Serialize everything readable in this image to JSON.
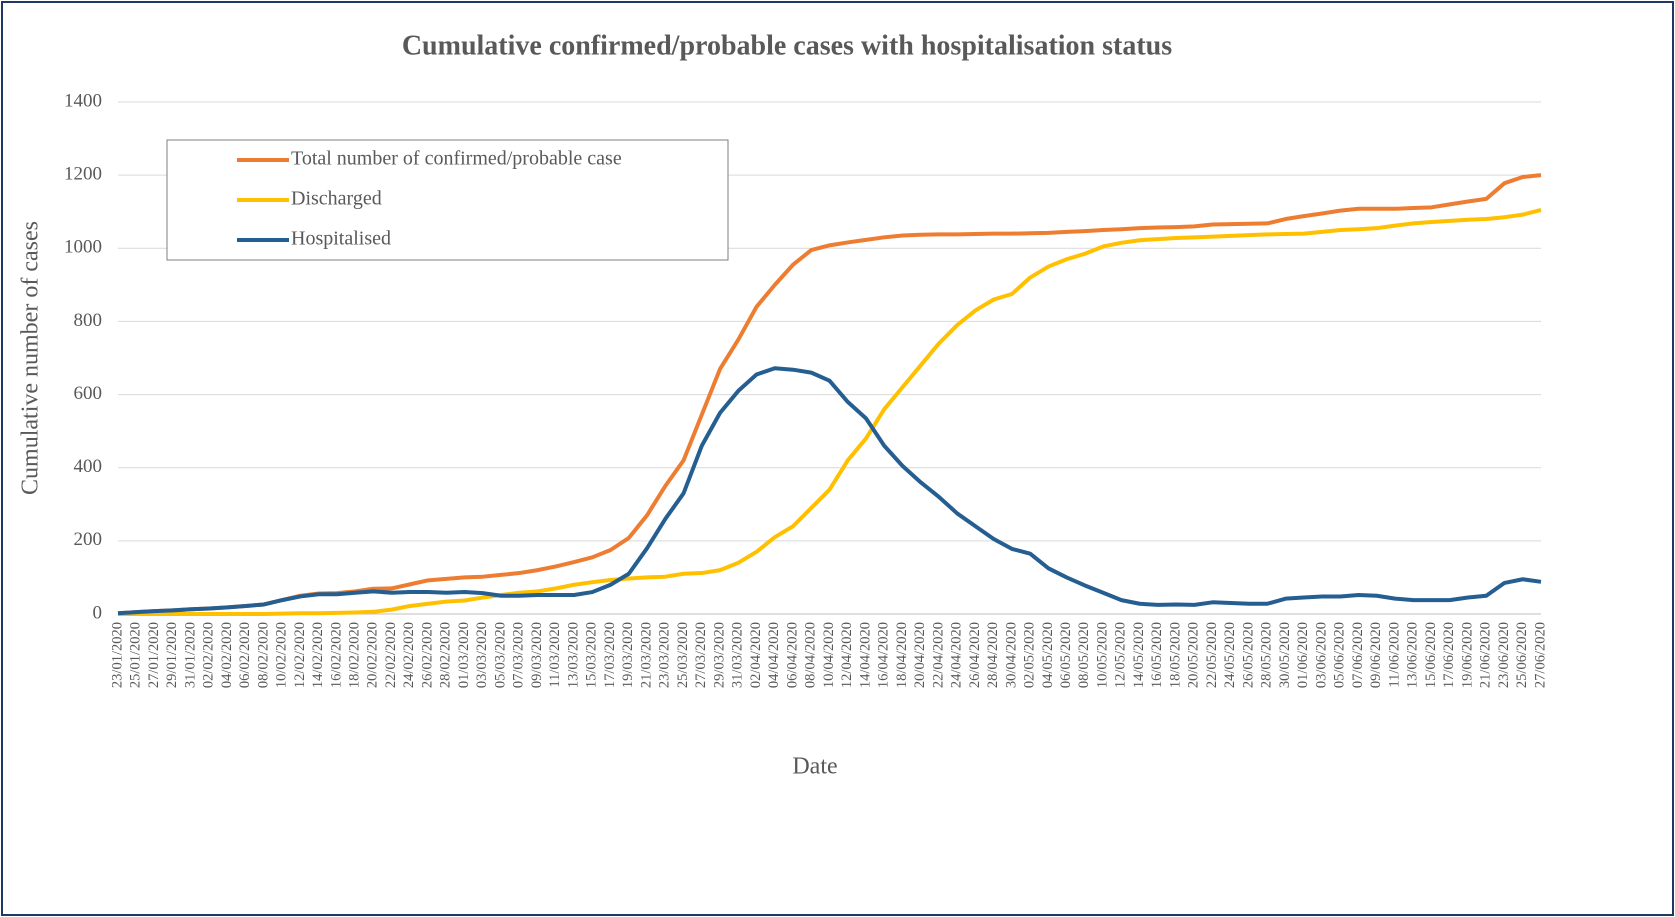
{
  "chart_data": {
    "type": "line",
    "title": "Cumulative confirmed/probable cases with hospitalisation status",
    "x_label": "Date",
    "y_label": "Cumulative number of cases",
    "categories": [
      "23/01/2020",
      "25/01/2020",
      "27/01/2020",
      "29/01/2020",
      "31/01/2020",
      "02/02/2020",
      "04/02/2020",
      "06/02/2020",
      "08/02/2020",
      "10/02/2020",
      "12/02/2020",
      "14/02/2020",
      "16/02/2020",
      "18/02/2020",
      "20/02/2020",
      "22/02/2020",
      "24/02/2020",
      "26/02/2020",
      "28/02/2020",
      "01/03/2020",
      "03/03/2020",
      "05/03/2020",
      "07/03/2020",
      "09/03/2020",
      "11/03/2020",
      "13/03/2020",
      "15/03/2020",
      "17/03/2020",
      "19/03/2020",
      "21/03/2020",
      "23/03/2020",
      "25/03/2020",
      "27/03/2020",
      "29/03/2020",
      "31/03/2020",
      "02/04/2020",
      "04/04/2020",
      "06/04/2020",
      "08/04/2020",
      "10/04/2020",
      "12/04/2020",
      "14/04/2020",
      "16/04/2020",
      "18/04/2020",
      "20/04/2020",
      "22/04/2020",
      "24/04/2020",
      "26/04/2020",
      "28/04/2020",
      "30/04/2020",
      "02/05/2020",
      "04/05/2020",
      "06/05/2020",
      "08/05/2020",
      "10/05/2020",
      "12/05/2020",
      "14/05/2020",
      "16/05/2020",
      "18/05/2020",
      "20/05/2020",
      "22/05/2020",
      "24/05/2020",
      "26/05/2020",
      "28/05/2020",
      "30/05/2020",
      "01/06/2020",
      "03/06/2020",
      "05/06/2020",
      "07/06/2020",
      "09/06/2020",
      "11/06/2020",
      "13/06/2020",
      "15/06/2020",
      "17/06/2020",
      "19/06/2020",
      "21/06/2020",
      "23/06/2020",
      "25/06/2020",
      "27/06/2020"
    ],
    "series": [
      {
        "name": "Total number of confirmed/probable case",
        "color": "#ed7d31",
        "values": [
          2,
          5,
          8,
          10,
          13,
          15,
          18,
          22,
          26,
          38,
          50,
          56,
          57,
          62,
          69,
          70,
          81,
          92,
          96,
          100,
          102,
          107,
          112,
          120,
          130,
          142,
          155,
          175,
          208,
          270,
          350,
          420,
          545,
          670,
          750,
          840,
          900,
          955,
          995,
          1008,
          1016,
          1023,
          1030,
          1035,
          1037,
          1038,
          1038,
          1039,
          1040,
          1040,
          1041,
          1042,
          1045,
          1047,
          1050,
          1052,
          1055,
          1057,
          1058,
          1060,
          1065,
          1066,
          1067,
          1068,
          1080,
          1088,
          1095,
          1103,
          1108,
          1108,
          1108,
          1110,
          1112,
          1120,
          1128,
          1135,
          1178,
          1195,
          1200
        ]
      },
      {
        "name": "Discharged",
        "color": "#ffc000",
        "values": [
          0,
          0,
          0,
          0,
          0,
          0,
          0,
          0,
          0,
          1,
          2,
          2,
          3,
          4,
          6,
          12,
          22,
          28,
          34,
          37,
          45,
          52,
          58,
          62,
          70,
          80,
          87,
          93,
          97,
          100,
          102,
          110,
          112,
          120,
          140,
          170,
          210,
          240,
          290,
          340,
          420,
          480,
          560,
          620,
          680,
          740,
          790,
          830,
          860,
          875,
          920,
          950,
          970,
          985,
          1005,
          1015,
          1022,
          1025,
          1028,
          1030,
          1032,
          1034,
          1036,
          1038,
          1039,
          1040,
          1045,
          1050,
          1052,
          1055,
          1062,
          1068,
          1072,
          1075,
          1078,
          1080,
          1085,
          1092,
          1105
        ]
      },
      {
        "name": "Hospitalised",
        "color": "#255e91",
        "values": [
          2,
          5,
          8,
          10,
          13,
          15,
          18,
          22,
          26,
          38,
          48,
          54,
          54,
          58,
          62,
          58,
          60,
          60,
          58,
          60,
          57,
          50,
          50,
          52,
          52,
          52,
          60,
          80,
          110,
          180,
          260,
          330,
          460,
          550,
          610,
          655,
          672,
          668,
          660,
          638,
          580,
          535,
          460,
          405,
          360,
          320,
          275,
          240,
          205,
          178,
          165,
          125,
          100,
          78,
          58,
          38,
          28,
          25,
          26,
          25,
          32,
          30,
          28,
          28,
          42,
          45,
          48,
          48,
          52,
          50,
          42,
          38,
          38,
          38,
          45,
          50,
          85,
          95,
          88
        ]
      }
    ],
    "ylim": [
      0,
      1400
    ],
    "yticks": [
      0,
      200,
      400,
      600,
      800,
      1000,
      1200,
      1400
    ],
    "grid": true,
    "legend": "top-left"
  }
}
